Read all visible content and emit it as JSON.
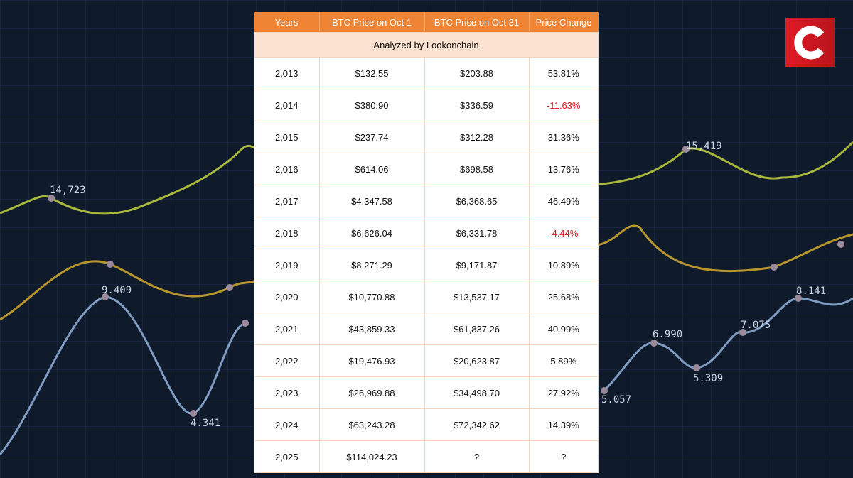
{
  "logo": {
    "letter": "C"
  },
  "table": {
    "headers": [
      "Years",
      "BTC Price on Oct 1",
      "BTC Price on Oct 31",
      "Price Change"
    ],
    "subtitle": "Analyzed by Lookonchain",
    "rows": [
      [
        "2,013",
        "$132.55",
        "$203.88",
        "53.81%"
      ],
      [
        "2,014",
        "$380.90",
        "$336.59",
        "-11.63%"
      ],
      [
        "2,015",
        "$237.74",
        "$312.28",
        "31.36%"
      ],
      [
        "2,016",
        "$614.06",
        "$698.58",
        "13.76%"
      ],
      [
        "2,017",
        "$4,347.58",
        "$6,368.65",
        "46.49%"
      ],
      [
        "2,018",
        "$6,626.04",
        "$6,331.78",
        "-4.44%"
      ],
      [
        "2,019",
        "$8,271.29",
        "$9,171.87",
        "10.89%"
      ],
      [
        "2,020",
        "$10,770.88",
        "$13,537.17",
        "25.68%"
      ],
      [
        "2,021",
        "$43,859.33",
        "$61,837.26",
        "40.99%"
      ],
      [
        "2,022",
        "$19,476.93",
        "$20,623.87",
        "5.89%"
      ],
      [
        "2,023",
        "$26,969.88",
        "$34,498.70",
        "27.92%"
      ],
      [
        "2,024",
        "$63,243.28",
        "$72,342.62",
        "14.39%"
      ],
      [
        "2,025",
        "$114,024.23",
        "?",
        "?"
      ]
    ]
  },
  "background_labels": [
    "14,723",
    "15,419",
    "9.409",
    "4.341",
    "6.990",
    "5.309",
    "7.075",
    "8.141",
    "5.057"
  ],
  "colors": {
    "header": "#ee8434",
    "negative": "#e8141c",
    "logo": "#e01b25"
  }
}
